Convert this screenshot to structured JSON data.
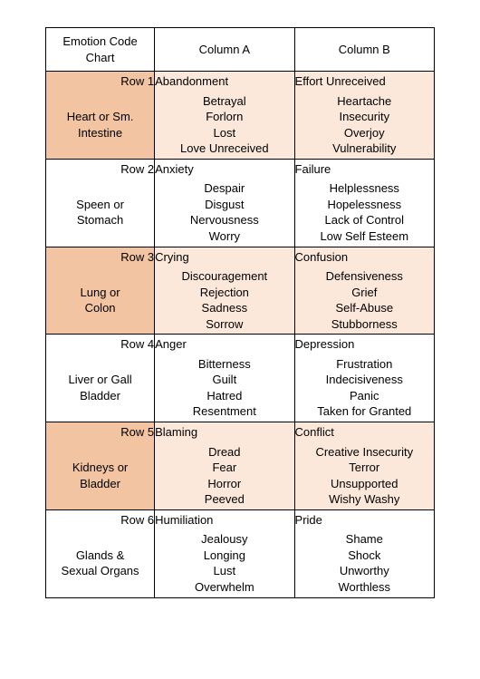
{
  "header": {
    "title_line1": "Emotion Code",
    "title_line2": "Chart",
    "col_a": "Column A",
    "col_b": "Column B"
  },
  "rows": [
    {
      "tinted": true,
      "row_label": "Row 1",
      "topA": "Abandonment",
      "topB": "Effort Unreceived",
      "organ_line1": "Heart or Sm.",
      "organ_line2": "Intestine",
      "a": [
        "Betrayal",
        "Forlorn",
        "Lost",
        "Love Unreceived"
      ],
      "b": [
        "Heartache",
        "Insecurity",
        "Overjoy",
        "Vulnerability"
      ]
    },
    {
      "tinted": false,
      "row_label": "Row 2",
      "topA": "Anxiety",
      "topB": "Failure",
      "organ_line1": "Speen or",
      "organ_line2": "Stomach",
      "a": [
        "Despair",
        "Disgust",
        "Nervousness",
        "Worry"
      ],
      "b": [
        "Helplessness",
        "Hopelessness",
        "Lack of Control",
        "Low Self Esteem"
      ]
    },
    {
      "tinted": true,
      "row_label": "Row 3",
      "topA": "Crying",
      "topB": "Confusion",
      "organ_line1": "Lung or",
      "organ_line2": "Colon",
      "a": [
        "Discouragement",
        "Rejection",
        "Sadness",
        "Sorrow"
      ],
      "b": [
        "Defensiveness",
        "Grief",
        "Self-Abuse",
        "Stubborness"
      ]
    },
    {
      "tinted": false,
      "row_label": "Row 4",
      "topA": "Anger",
      "topB": "Depression",
      "organ_line1": "Liver or Gall",
      "organ_line2": "Bladder",
      "a": [
        "Bitterness",
        "Guilt",
        "Hatred",
        "Resentment"
      ],
      "b": [
        "Frustration",
        "Indecisiveness",
        "Panic",
        "Taken for Granted"
      ]
    },
    {
      "tinted": true,
      "row_label": "Row 5",
      "topA": "Blaming",
      "topB": "Conflict",
      "organ_line1": "Kidneys or",
      "organ_line2": "Bladder",
      "a": [
        "Dread",
        "Fear",
        "Horror",
        "Peeved"
      ],
      "b": [
        "Creative Insecurity",
        "Terror",
        "Unsupported",
        "Wishy Washy"
      ]
    },
    {
      "tinted": false,
      "row_label": "Row 6",
      "topA": "Humiliation",
      "topB": "Pride",
      "organ_line1": "Glands &",
      "organ_line2": "Sexual Organs",
      "a": [
        "Jealousy",
        "Longing",
        "Lust",
        "Overwhelm"
      ],
      "b": [
        "Shame",
        "Shock",
        "Unworthy",
        "Worthless"
      ]
    }
  ]
}
